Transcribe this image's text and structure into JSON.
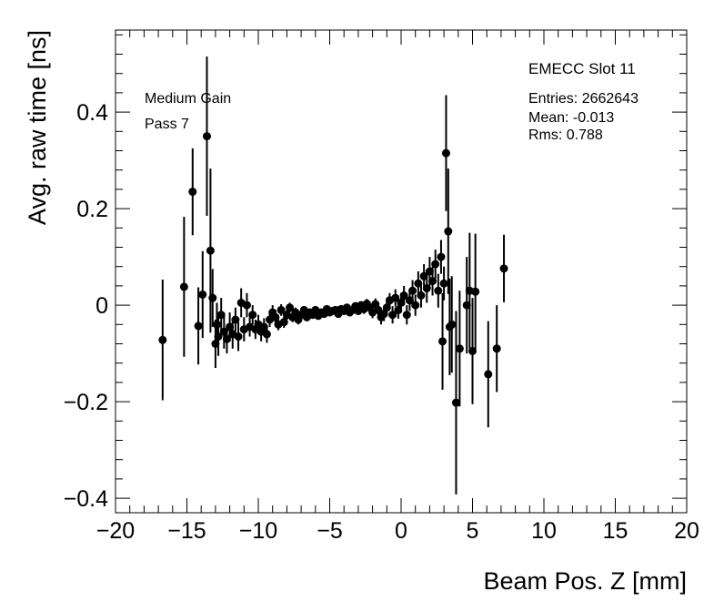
{
  "chart_data": {
    "type": "scatter",
    "title": "EMECC Slot 11",
    "xlabel": "Beam Pos. Z [mm]",
    "ylabel": "Avg. raw time [ns]",
    "xlim": [
      -20,
      20
    ],
    "ylim": [
      -0.43,
      0.57
    ],
    "grid": false,
    "xticks": [
      -20,
      -15,
      -10,
      -5,
      0,
      5,
      10,
      15,
      20
    ],
    "xtick_labels": [
      "−20",
      "−15",
      "−10",
      "−5",
      "0",
      "5",
      "10",
      "15",
      "20"
    ],
    "yticks": [
      -0.4,
      -0.2,
      0,
      0.2,
      0.4
    ],
    "ytick_labels": [
      "−0.4",
      "−0.2",
      "0",
      "0.2",
      "0.4"
    ],
    "annotations": [
      "Medium Gain",
      "Pass 7"
    ],
    "stats": {
      "entries": "Entries: 2662643",
      "mean": "Mean: -0.013",
      "rms": "Rms: 0.788"
    },
    "series": [
      {
        "marker": "circle",
        "color": "#000000",
        "points": [
          {
            "x": -16.7,
            "y": -0.072,
            "err": 0.125
          },
          {
            "x": -15.2,
            "y": 0.038,
            "err": 0.145
          },
          {
            "x": -14.6,
            "y": 0.235,
            "err": 0.09
          },
          {
            "x": -14.2,
            "y": -0.043,
            "err": 0.08
          },
          {
            "x": -13.9,
            "y": 0.022,
            "err": 0.09
          },
          {
            "x": -13.6,
            "y": 0.35,
            "err": 0.165
          },
          {
            "x": -13.35,
            "y": 0.113,
            "err": 0.17
          },
          {
            "x": -13.2,
            "y": 0.015,
            "err": 0.06
          },
          {
            "x": -13.0,
            "y": -0.08,
            "err": 0.05
          },
          {
            "x": -12.9,
            "y": -0.04,
            "err": 0.045
          },
          {
            "x": -12.8,
            "y": -0.065,
            "err": 0.04
          },
          {
            "x": -12.6,
            "y": -0.02,
            "err": 0.035
          },
          {
            "x": -12.4,
            "y": -0.055,
            "err": 0.035
          },
          {
            "x": -12.2,
            "y": -0.07,
            "err": 0.03
          },
          {
            "x": -12.0,
            "y": -0.045,
            "err": 0.03
          },
          {
            "x": -11.8,
            "y": -0.06,
            "err": 0.03
          },
          {
            "x": -11.6,
            "y": -0.03,
            "err": 0.025
          },
          {
            "x": -11.4,
            "y": -0.065,
            "err": 0.03
          },
          {
            "x": -11.2,
            "y": 0.005,
            "err": 0.03
          },
          {
            "x": -11.0,
            "y": -0.05,
            "err": 0.025
          },
          {
            "x": -10.8,
            "y": 0.0,
            "err": 0.025
          },
          {
            "x": -10.6,
            "y": -0.045,
            "err": 0.02
          },
          {
            "x": -10.4,
            "y": -0.02,
            "err": 0.02
          },
          {
            "x": -10.2,
            "y": -0.05,
            "err": 0.02
          },
          {
            "x": -10.0,
            "y": -0.04,
            "err": 0.02
          },
          {
            "x": -9.8,
            "y": -0.055,
            "err": 0.02
          },
          {
            "x": -9.6,
            "y": -0.045,
            "err": 0.018
          },
          {
            "x": -9.4,
            "y": -0.06,
            "err": 0.018
          },
          {
            "x": -9.2,
            "y": -0.03,
            "err": 0.015
          },
          {
            "x": -9.0,
            "y": -0.015,
            "err": 0.015
          },
          {
            "x": -8.8,
            "y": -0.025,
            "err": 0.015
          },
          {
            "x": -8.6,
            "y": -0.04,
            "err": 0.012
          },
          {
            "x": -8.4,
            "y": -0.01,
            "err": 0.012
          },
          {
            "x": -8.2,
            "y": -0.035,
            "err": 0.012
          },
          {
            "x": -8.0,
            "y": -0.02,
            "err": 0.01
          },
          {
            "x": -7.8,
            "y": -0.005,
            "err": 0.01
          },
          {
            "x": -7.6,
            "y": -0.025,
            "err": 0.01
          },
          {
            "x": -7.4,
            "y": -0.015,
            "err": 0.01
          },
          {
            "x": -7.2,
            "y": -0.03,
            "err": 0.01
          },
          {
            "x": -7.0,
            "y": -0.02,
            "err": 0.008
          },
          {
            "x": -6.8,
            "y": -0.01,
            "err": 0.008
          },
          {
            "x": -6.6,
            "y": -0.025,
            "err": 0.008
          },
          {
            "x": -6.4,
            "y": -0.015,
            "err": 0.008
          },
          {
            "x": -6.2,
            "y": -0.02,
            "err": 0.008
          },
          {
            "x": -6.0,
            "y": -0.01,
            "err": 0.007
          },
          {
            "x": -5.8,
            "y": -0.022,
            "err": 0.007
          },
          {
            "x": -5.6,
            "y": -0.015,
            "err": 0.007
          },
          {
            "x": -5.4,
            "y": -0.018,
            "err": 0.007
          },
          {
            "x": -5.2,
            "y": -0.008,
            "err": 0.007
          },
          {
            "x": -5.0,
            "y": -0.015,
            "err": 0.007
          },
          {
            "x": -4.8,
            "y": -0.012,
            "err": 0.007
          },
          {
            "x": -4.6,
            "y": -0.01,
            "err": 0.007
          },
          {
            "x": -4.4,
            "y": -0.018,
            "err": 0.007
          },
          {
            "x": -4.2,
            "y": -0.008,
            "err": 0.007
          },
          {
            "x": -4.0,
            "y": -0.012,
            "err": 0.007
          },
          {
            "x": -3.8,
            "y": -0.005,
            "err": 0.007
          },
          {
            "x": -3.6,
            "y": -0.015,
            "err": 0.008
          },
          {
            "x": -3.4,
            "y": -0.01,
            "err": 0.008
          },
          {
            "x": -3.2,
            "y": -0.002,
            "err": 0.008
          },
          {
            "x": -3.0,
            "y": -0.012,
            "err": 0.008
          },
          {
            "x": -2.8,
            "y": 0.0,
            "err": 0.008
          },
          {
            "x": -2.6,
            "y": -0.008,
            "err": 0.01
          },
          {
            "x": -2.4,
            "y": 0.003,
            "err": 0.01
          },
          {
            "x": -2.2,
            "y": -0.005,
            "err": 0.01
          },
          {
            "x": -2.0,
            "y": -0.015,
            "err": 0.012
          },
          {
            "x": -1.8,
            "y": 0.002,
            "err": 0.012
          },
          {
            "x": -1.6,
            "y": -0.01,
            "err": 0.012
          },
          {
            "x": -1.4,
            "y": -0.025,
            "err": 0.015
          },
          {
            "x": -1.2,
            "y": -0.018,
            "err": 0.015
          },
          {
            "x": -1.0,
            "y": -0.005,
            "err": 0.015
          },
          {
            "x": -0.8,
            "y": 0.01,
            "err": 0.015
          },
          {
            "x": -0.6,
            "y": -0.02,
            "err": 0.018
          },
          {
            "x": -0.4,
            "y": 0.015,
            "err": 0.018
          },
          {
            "x": -0.2,
            "y": -0.01,
            "err": 0.018
          },
          {
            "x": 0.0,
            "y": 0.005,
            "err": 0.02
          },
          {
            "x": 0.2,
            "y": 0.02,
            "err": 0.02
          },
          {
            "x": 0.4,
            "y": -0.02,
            "err": 0.02
          },
          {
            "x": 0.6,
            "y": 0.01,
            "err": 0.022
          },
          {
            "x": 0.8,
            "y": 0.03,
            "err": 0.022
          },
          {
            "x": 1.0,
            "y": 0.0,
            "err": 0.022
          },
          {
            "x": 1.2,
            "y": 0.045,
            "err": 0.025
          },
          {
            "x": 1.4,
            "y": 0.02,
            "err": 0.025
          },
          {
            "x": 1.6,
            "y": 0.06,
            "err": 0.025
          },
          {
            "x": 1.8,
            "y": 0.035,
            "err": 0.03
          },
          {
            "x": 2.0,
            "y": 0.07,
            "err": 0.03
          },
          {
            "x": 2.2,
            "y": 0.05,
            "err": 0.03
          },
          {
            "x": 2.4,
            "y": 0.085,
            "err": 0.03
          },
          {
            "x": 2.6,
            "y": 0.03,
            "err": 0.035
          },
          {
            "x": 2.8,
            "y": 0.1,
            "err": 0.035
          },
          {
            "x": 3.0,
            "y": 0.045,
            "err": 0.035
          },
          {
            "x": 2.9,
            "y": -0.075,
            "err": 0.1
          },
          {
            "x": 3.15,
            "y": 0.315,
            "err": 0.12
          },
          {
            "x": 3.3,
            "y": 0.153,
            "err": 0.13
          },
          {
            "x": 3.4,
            "y": -0.045,
            "err": 0.1
          },
          {
            "x": 3.55,
            "y": -0.04,
            "err": 0.1
          },
          {
            "x": 3.85,
            "y": -0.202,
            "err": 0.19
          },
          {
            "x": 4.1,
            "y": -0.09,
            "err": 0.12
          },
          {
            "x": 4.6,
            "y": 0.0,
            "err": 0.1
          },
          {
            "x": 4.8,
            "y": 0.03,
            "err": 0.12
          },
          {
            "x": 5.0,
            "y": -0.095,
            "err": 0.11
          },
          {
            "x": 5.2,
            "y": 0.028,
            "err": 0.12
          },
          {
            "x": 6.1,
            "y": -0.143,
            "err": 0.11
          },
          {
            "x": 6.7,
            "y": -0.09,
            "err": 0.09
          },
          {
            "x": 7.2,
            "y": 0.076,
            "err": 0.07
          }
        ]
      }
    ]
  }
}
